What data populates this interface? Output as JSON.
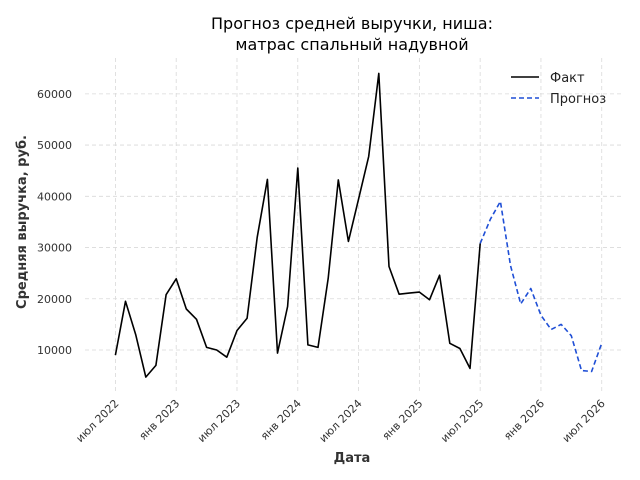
{
  "chart_data": {
    "type": "line",
    "title_lines": [
      "Прогноз средней выручки, ниша:",
      "матрас спальный надувной"
    ],
    "xlabel": "Дата",
    "ylabel": "Средняя выручка, руб.",
    "x_ticks": [
      {
        "date": "2022-07",
        "label": "июл 2022"
      },
      {
        "date": "2023-01",
        "label": "янв 2023"
      },
      {
        "date": "2023-07",
        "label": "июл 2023"
      },
      {
        "date": "2024-01",
        "label": "янв 2024"
      },
      {
        "date": "2024-07",
        "label": "июл 2024"
      },
      {
        "date": "2025-01",
        "label": "янв 2025"
      },
      {
        "date": "2025-07",
        "label": "июл 2025"
      },
      {
        "date": "2026-01",
        "label": "янв 2026"
      },
      {
        "date": "2026-07",
        "label": "июл 2026"
      }
    ],
    "y_ticks": [
      10000,
      20000,
      30000,
      40000,
      50000,
      60000
    ],
    "xlim": [
      "2022-04",
      "2026-09"
    ],
    "ylim": [
      1800,
      67000
    ],
    "grid": true,
    "legend_position": "top-right",
    "series": [
      {
        "name": "Факт",
        "color": "#000000",
        "style": "solid",
        "points": [
          {
            "x": "2022-07",
            "y": 9000
          },
          {
            "x": "2022-08",
            "y": 19500
          },
          {
            "x": "2022-09",
            "y": 13000
          },
          {
            "x": "2022-10",
            "y": 4700
          },
          {
            "x": "2022-11",
            "y": 7000
          },
          {
            "x": "2022-12",
            "y": 20800
          },
          {
            "x": "2023-01",
            "y": 23900
          },
          {
            "x": "2023-02",
            "y": 18000
          },
          {
            "x": "2023-03",
            "y": 16000
          },
          {
            "x": "2023-04",
            "y": 10500
          },
          {
            "x": "2023-05",
            "y": 10000
          },
          {
            "x": "2023-06",
            "y": 8600
          },
          {
            "x": "2023-07",
            "y": 13800
          },
          {
            "x": "2023-08",
            "y": 16200
          },
          {
            "x": "2023-09",
            "y": 32000
          },
          {
            "x": "2023-10",
            "y": 43300
          },
          {
            "x": "2023-11",
            "y": 9400
          },
          {
            "x": "2023-12",
            "y": 18500
          },
          {
            "x": "2024-01",
            "y": 45500
          },
          {
            "x": "2024-02",
            "y": 11000
          },
          {
            "x": "2024-03",
            "y": 10500
          },
          {
            "x": "2024-04",
            "y": 24000
          },
          {
            "x": "2024-05",
            "y": 43200
          },
          {
            "x": "2024-06",
            "y": 31200
          },
          {
            "x": "2024-07",
            "y": 39500
          },
          {
            "x": "2024-08",
            "y": 47800
          },
          {
            "x": "2024-09",
            "y": 64000
          },
          {
            "x": "2024-10",
            "y": 26300
          },
          {
            "x": "2024-11",
            "y": 20900
          },
          {
            "x": "2024-12",
            "y": 21100
          },
          {
            "x": "2025-01",
            "y": 21300
          },
          {
            "x": "2025-02",
            "y": 19800
          },
          {
            "x": "2025-03",
            "y": 24600
          },
          {
            "x": "2025-04",
            "y": 11300
          },
          {
            "x": "2025-05",
            "y": 10300
          },
          {
            "x": "2025-06",
            "y": 6400
          },
          {
            "x": "2025-07",
            "y": 30800
          }
        ]
      },
      {
        "name": "Прогноз",
        "color": "#1f4fd6",
        "style": "dashed",
        "points": [
          {
            "x": "2025-07",
            "y": 30800
          },
          {
            "x": "2025-08",
            "y": 35500
          },
          {
            "x": "2025-09",
            "y": 39000
          },
          {
            "x": "2025-10",
            "y": 26500
          },
          {
            "x": "2025-11",
            "y": 19000
          },
          {
            "x": "2025-12",
            "y": 22000
          },
          {
            "x": "2026-01",
            "y": 16800
          },
          {
            "x": "2026-02",
            "y": 14000
          },
          {
            "x": "2026-03",
            "y": 15000
          },
          {
            "x": "2026-04",
            "y": 12800
          },
          {
            "x": "2026-05",
            "y": 6000
          },
          {
            "x": "2026-06",
            "y": 5800
          },
          {
            "x": "2026-07",
            "y": 11300
          }
        ]
      }
    ]
  }
}
